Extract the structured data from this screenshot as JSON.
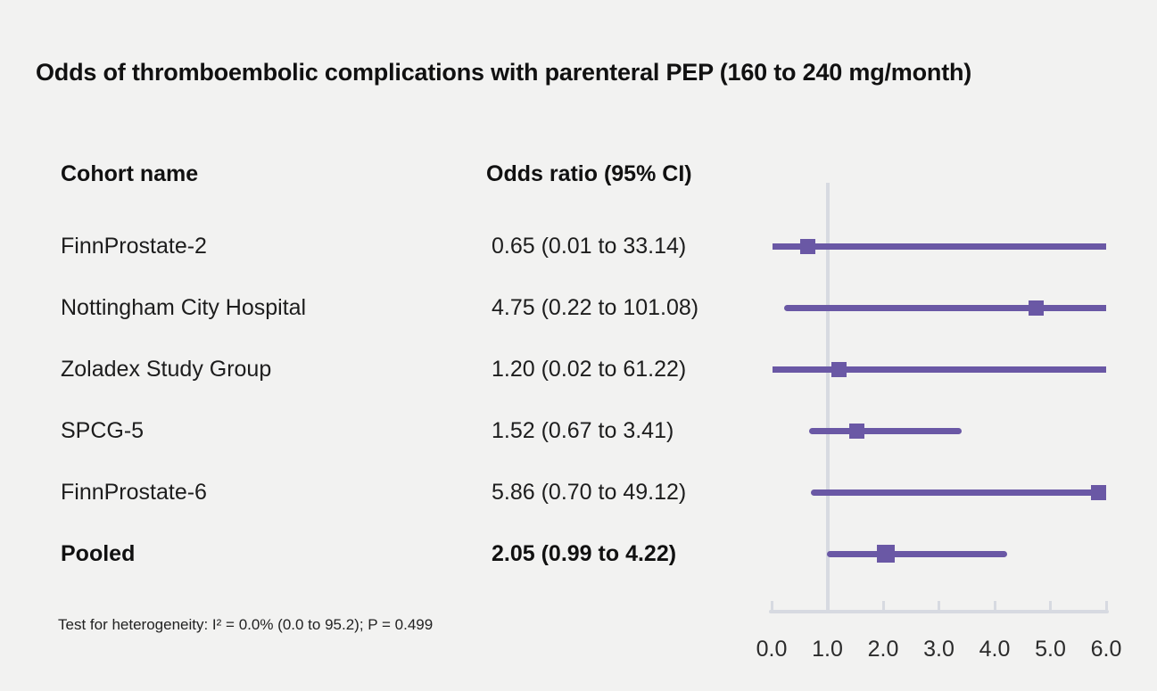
{
  "chart_data": {
    "type": "forest",
    "title": "Odds of thromboembolic complications with parenteral PEP (160 to 240 mg/month)",
    "columns": [
      "Cohort name",
      "Odds ratio (95% CI)"
    ],
    "rows": [
      {
        "name": "FinnProstate-2",
        "or": 0.65,
        "ci_low": 0.01,
        "ci_high": 33.14,
        "label": "0.65 (0.01 to 33.14)",
        "pooled": false
      },
      {
        "name": "Nottingham City Hospital",
        "or": 4.75,
        "ci_low": 0.22,
        "ci_high": 101.08,
        "label": "4.75 (0.22 to 101.08)",
        "pooled": false
      },
      {
        "name": "Zoladex Study Group",
        "or": 1.2,
        "ci_low": 0.02,
        "ci_high": 61.22,
        "label": "1.20 (0.02 to 61.22)",
        "pooled": false
      },
      {
        "name": "SPCG-5",
        "or": 1.52,
        "ci_low": 0.67,
        "ci_high": 3.41,
        "label": "1.52 (0.67 to 3.41)",
        "pooled": false
      },
      {
        "name": "FinnProstate-6",
        "or": 5.86,
        "ci_low": 0.7,
        "ci_high": 49.12,
        "label": "5.86 (0.70 to 49.12)",
        "pooled": false
      },
      {
        "name": "Pooled",
        "or": 2.05,
        "ci_low": 0.99,
        "ci_high": 4.22,
        "label": "2.05 (0.99 to 4.22)",
        "pooled": true
      }
    ],
    "axis": {
      "min": 0.0,
      "max": 6.0,
      "tick_values": [
        0.0,
        1.0,
        2.0,
        3.0,
        4.0,
        5.0,
        6.0
      ],
      "tick_labels": [
        "0.0",
        "1.0",
        "2.0",
        "3.0",
        "4.0",
        "5.0",
        "6.0"
      ],
      "reference_line": 1.0
    },
    "footnote": "Test for heterogeneity: I² = 0.0% (0.0 to 95.2); P = 0.499",
    "colors": {
      "marker": "#6a58a5",
      "ci_line": "#6a58a5",
      "axis": "#d7dae1",
      "reference_line": "#d7dae1",
      "background": "#f2f2f1",
      "text": "#1d1d1d"
    }
  }
}
